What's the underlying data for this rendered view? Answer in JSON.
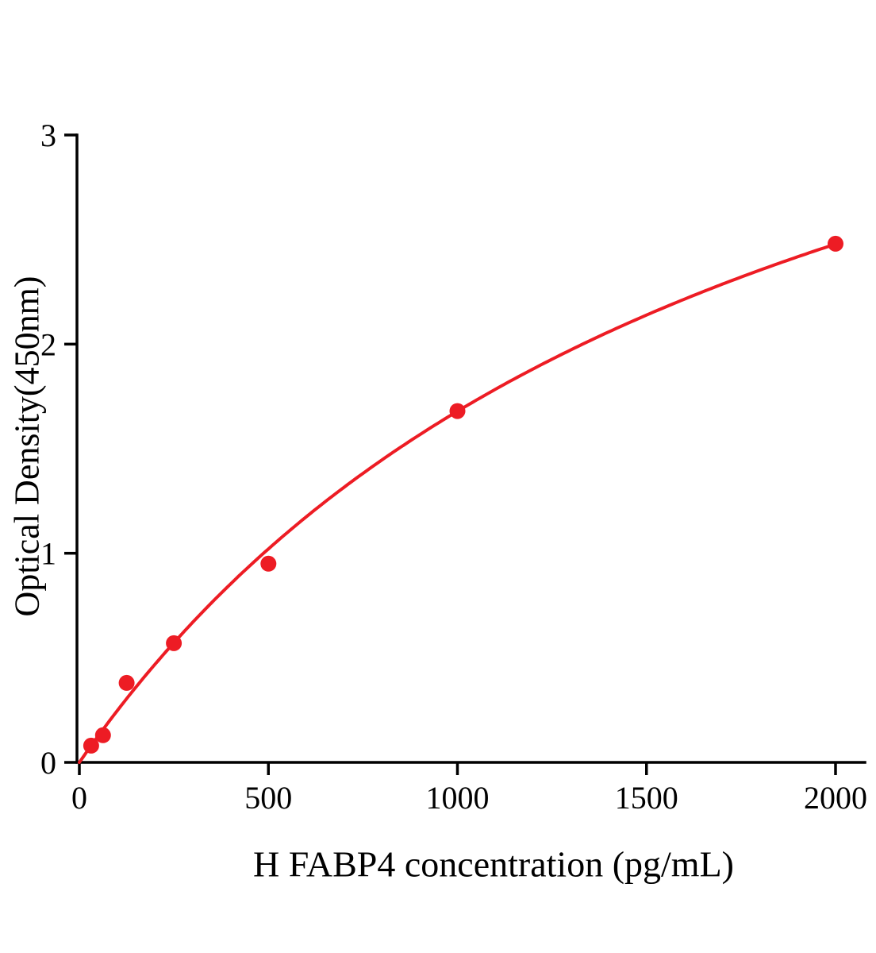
{
  "chart_data": {
    "type": "scatter",
    "title": "",
    "xlabel": "H FABP4 concentration (pg/mL)",
    "ylabel": "Optical Density(450nm)",
    "x": [
      31.25,
      62.5,
      125,
      250,
      500,
      1000,
      2000
    ],
    "y": [
      0.08,
      0.13,
      0.38,
      0.57,
      0.95,
      1.68,
      2.48
    ],
    "xlim": [
      0,
      2080
    ],
    "ylim": [
      0,
      3
    ],
    "x_ticks": [
      0,
      500,
      1000,
      1500,
      2000
    ],
    "y_ticks": [
      0,
      1,
      2,
      3
    ],
    "grid": "off",
    "legend": "none",
    "curve_fit": {
      "model": "michaelis-menten",
      "vmax": 4.73,
      "k": 1817
    },
    "series_color": "#ed1c24",
    "axis_color": "#000000"
  }
}
